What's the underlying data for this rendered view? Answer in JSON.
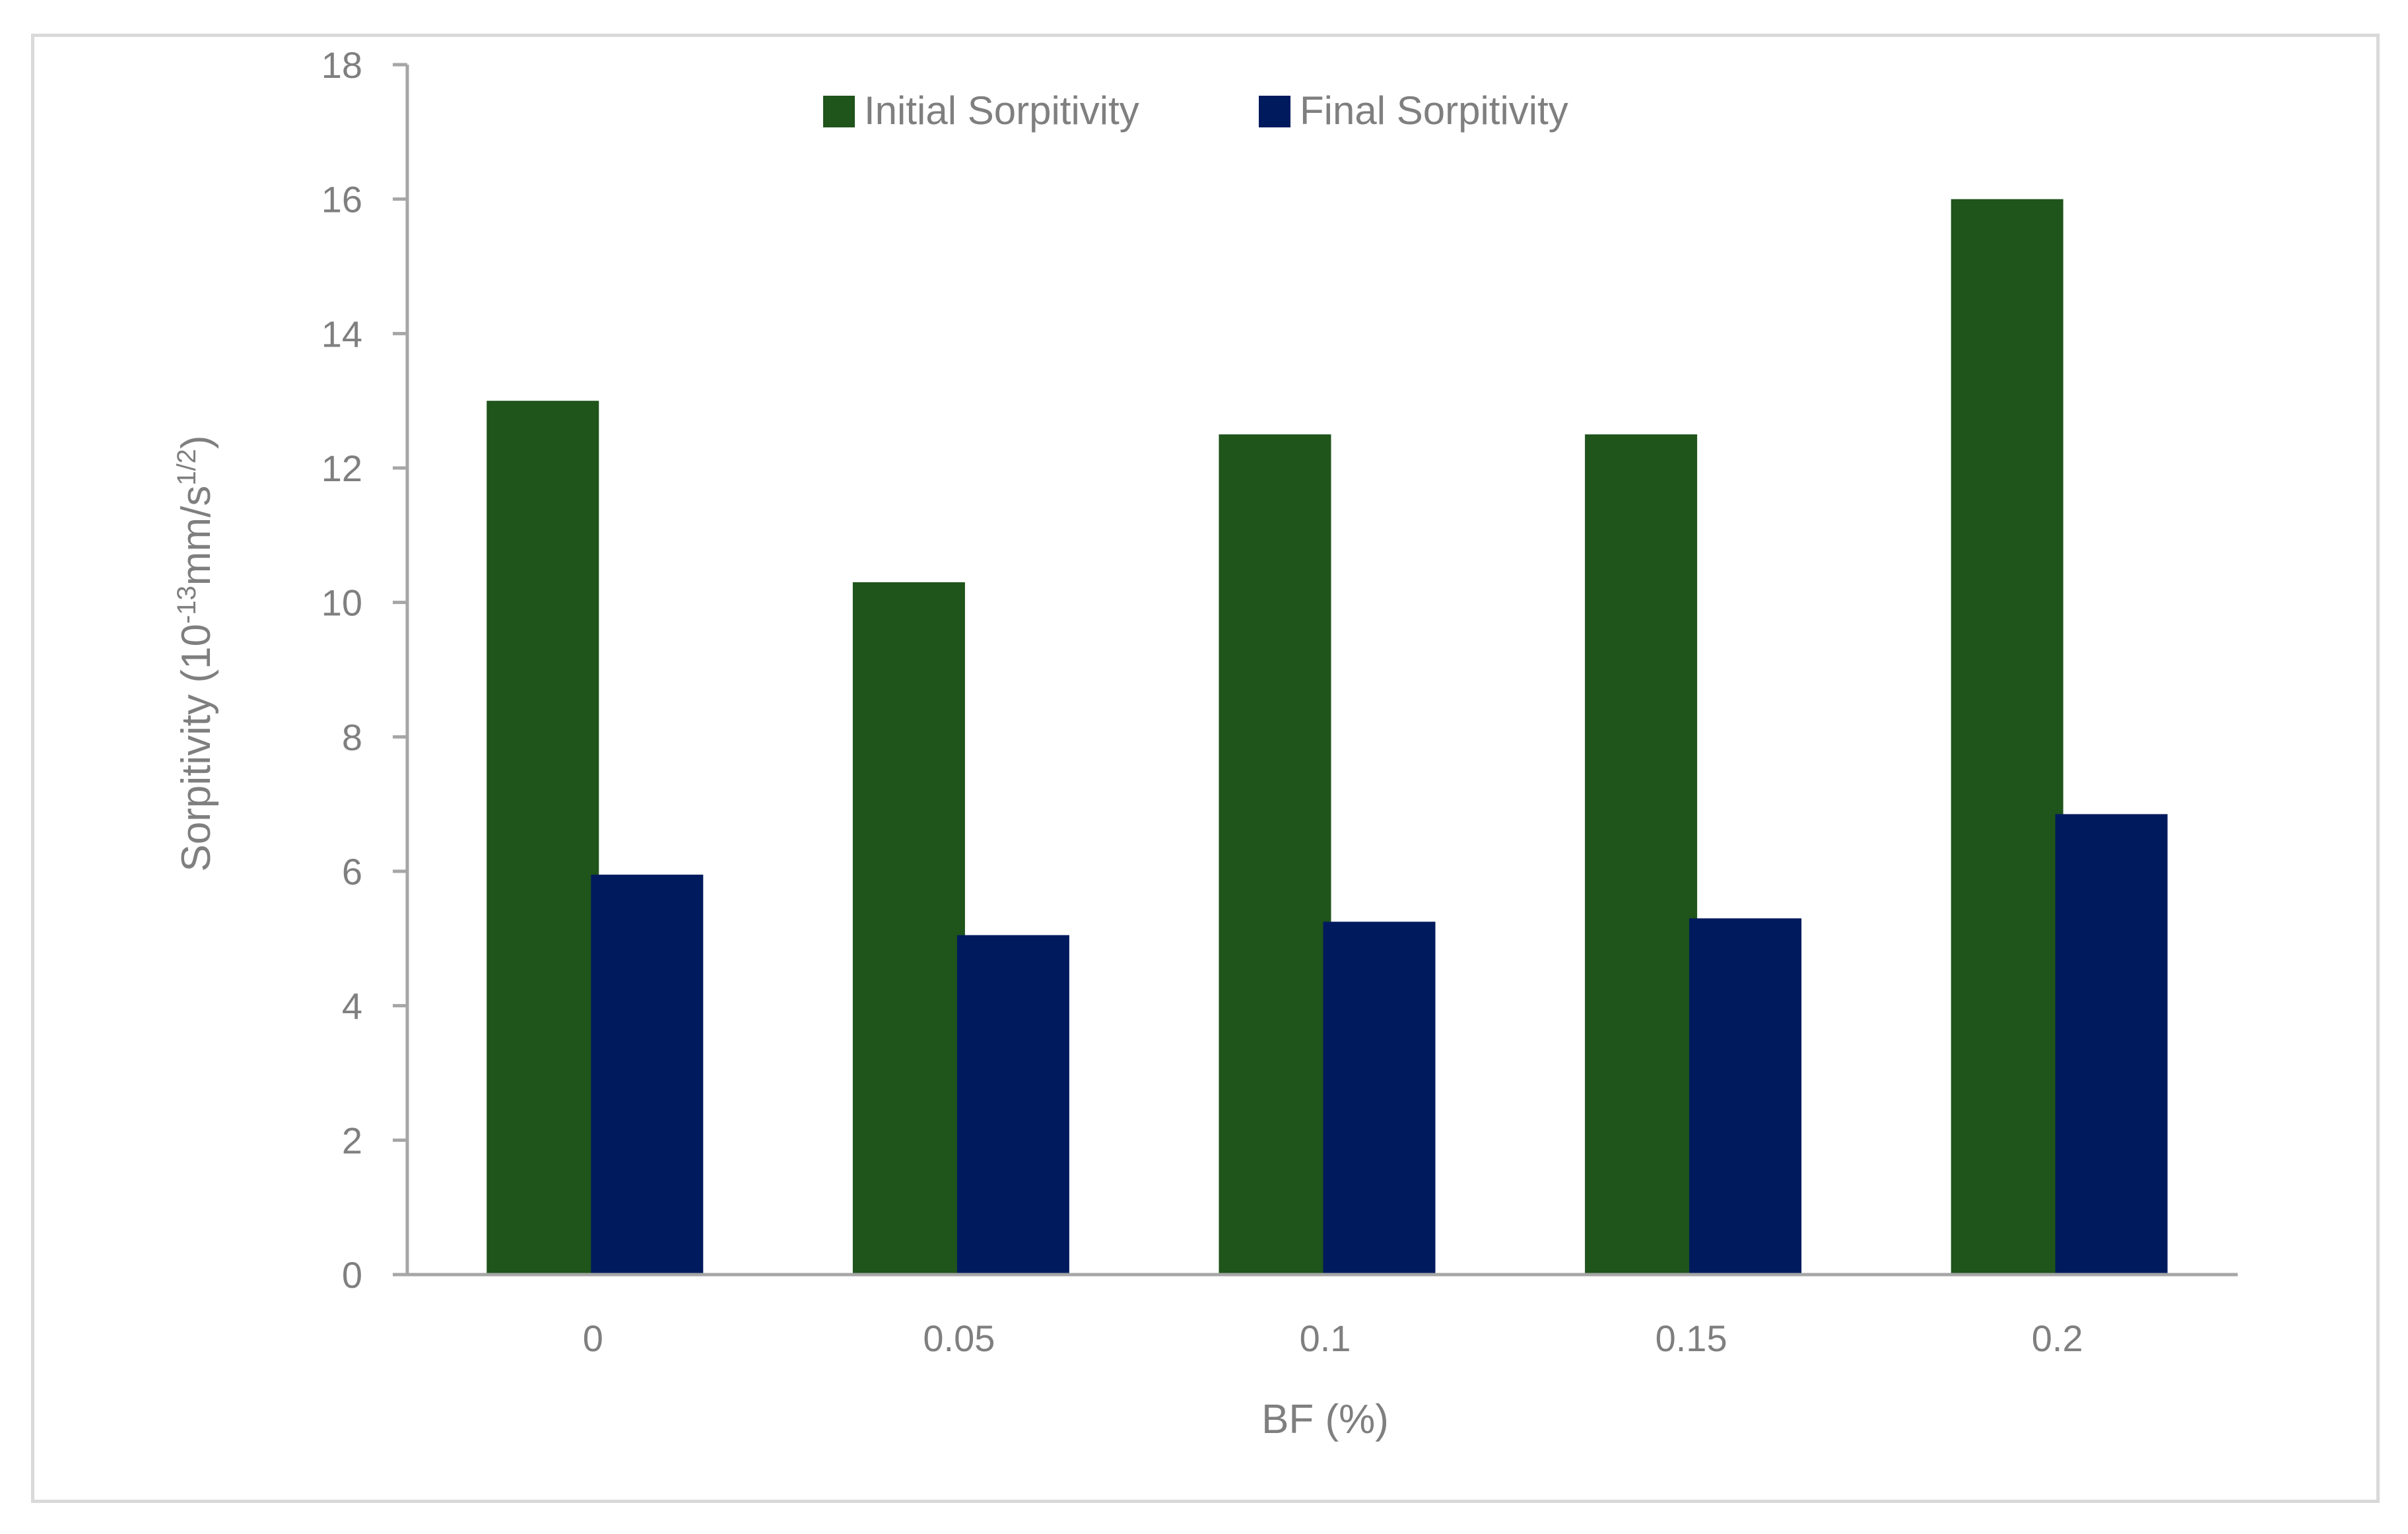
{
  "chart_data": {
    "type": "bar",
    "categories": [
      "0",
      "0.05",
      "0.1",
      "0.15",
      "0.2"
    ],
    "series": [
      {
        "name": "Initial Sorpitivity",
        "values": [
          13.0,
          10.3,
          12.5,
          12.5,
          16.0
        ],
        "color": "#1f541b"
      },
      {
        "name": "Final Sorpitivity",
        "values": [
          5.95,
          5.05,
          5.25,
          5.3,
          6.85
        ],
        "color": "#001a5e"
      }
    ],
    "title": "",
    "xlabel": "BF (%)",
    "ylabel": {
      "prefix": "Sorpitivity (10",
      "exp1": "-13",
      "middle": "mm/s",
      "exp2": "1/2",
      "suffix": ")"
    },
    "ylim": [
      0,
      18
    ],
    "yticks": [
      "0",
      "2",
      "4",
      "6",
      "8",
      "10",
      "12",
      "14",
      "16",
      "18"
    ],
    "grid": false,
    "legend_position": "top-center"
  },
  "colors": {
    "axis": "#a6a6a6",
    "text": "#7f7f7f",
    "frame": "#d9d9d9"
  }
}
